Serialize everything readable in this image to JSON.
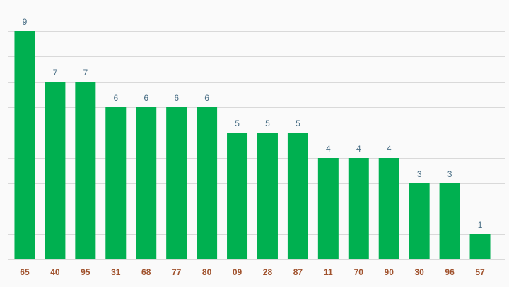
{
  "chart_data": {
    "type": "bar",
    "categories": [
      "65",
      "40",
      "95",
      "31",
      "68",
      "77",
      "80",
      "09",
      "28",
      "87",
      "11",
      "70",
      "90",
      "30",
      "96",
      "57"
    ],
    "values": [
      9,
      7,
      7,
      6,
      6,
      6,
      6,
      5,
      5,
      5,
      4,
      4,
      4,
      3,
      3,
      1
    ],
    "ylim": [
      0,
      10
    ],
    "grid": true,
    "legend": "none",
    "colors": {
      "bar": "#00b050",
      "value_label": "#4a6f86",
      "tick_label": "#a0522d",
      "grid": "#d9d9d9",
      "background": "#fafafa"
    }
  }
}
